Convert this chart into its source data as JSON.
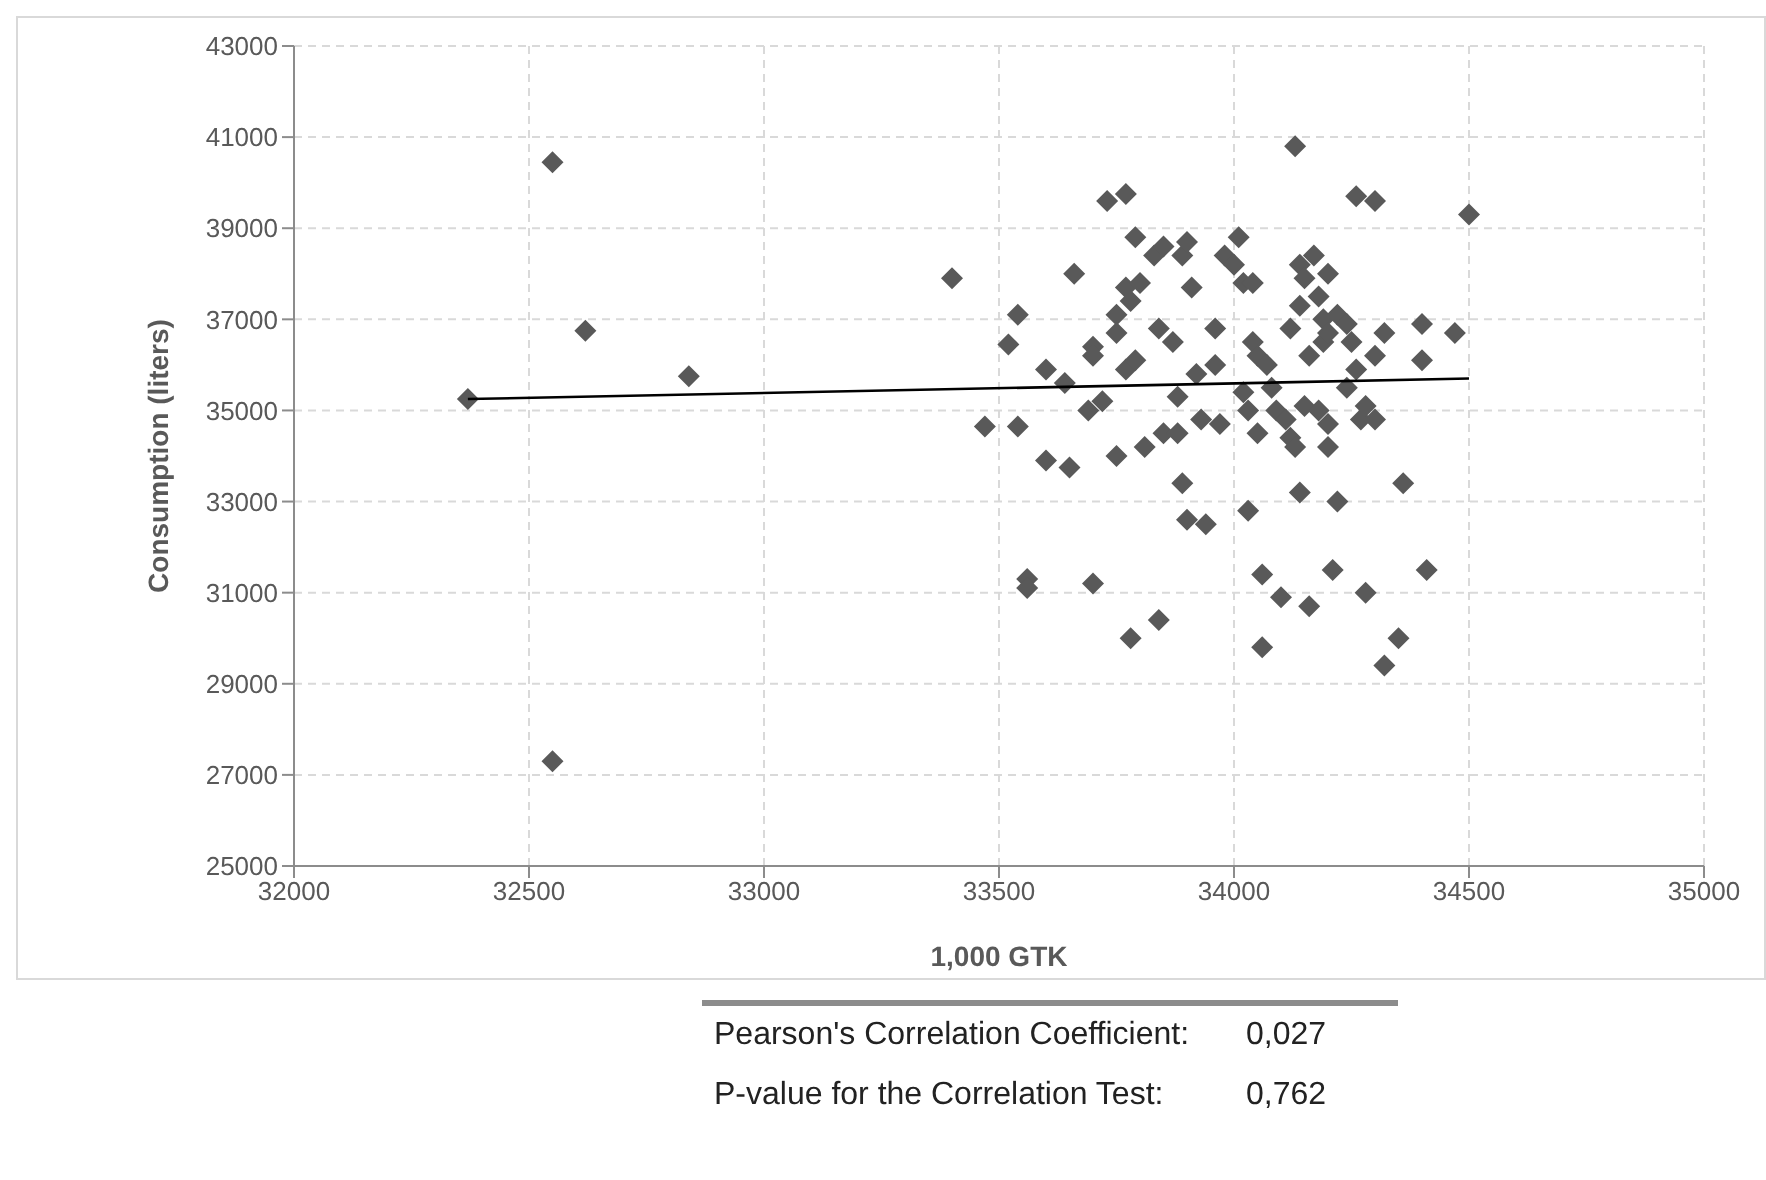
{
  "chart_data": {
    "type": "scatter",
    "xlabel": "1,000 GTK",
    "ylabel": "Consumption (liters)",
    "xlim": [
      32000,
      35000
    ],
    "xticks": [
      32000,
      32500,
      33000,
      33500,
      34000,
      34500,
      35000
    ],
    "ylim": [
      25000,
      43000
    ],
    "yticks": [
      25000,
      27000,
      29000,
      31000,
      33000,
      35000,
      37000,
      39000,
      41000,
      43000
    ],
    "grid": true,
    "legend": false,
    "marker": "diamond",
    "series": [
      {
        "type": "scatter",
        "color": "#595959",
        "x": [
          32370,
          32550,
          32620,
          32840,
          32550,
          33400,
          33470,
          33520,
          33540,
          33540,
          33560,
          33560,
          33600,
          33600,
          33640,
          33650,
          33660,
          33690,
          33700,
          33700,
          33700,
          33720,
          33730,
          33750,
          33750,
          33750,
          33770,
          33770,
          33770,
          33780,
          33790,
          33790,
          33780,
          33800,
          33810,
          33830,
          33840,
          33850,
          33850,
          33840,
          33870,
          33880,
          33880,
          33890,
          33890,
          33900,
          33900,
          33910,
          33920,
          33930,
          33940,
          33960,
          33960,
          33970,
          33980,
          34000,
          34010,
          34020,
          34020,
          34030,
          34030,
          34040,
          34040,
          34050,
          34050,
          34060,
          34060,
          34070,
          34080,
          34090,
          34100,
          34110,
          34120,
          34120,
          34130,
          34130,
          34140,
          34140,
          34140,
          34150,
          34150,
          34160,
          34160,
          34170,
          34180,
          34180,
          34190,
          34190,
          34200,
          34200,
          34200,
          34200,
          34210,
          34220,
          34220,
          34240,
          34240,
          34250,
          34260,
          34260,
          34270,
          34280,
          34280,
          34300,
          34300,
          34300,
          34320,
          34320,
          34350,
          34360,
          34400,
          34400,
          34410,
          34470,
          34500
        ],
        "values": [
          35250,
          40450,
          36750,
          35750,
          27300,
          37900,
          34650,
          36450,
          37100,
          34650,
          31300,
          31100,
          35900,
          33900,
          35600,
          33750,
          38000,
          35000,
          36400,
          36200,
          31200,
          35200,
          39600,
          37100,
          36700,
          34000,
          39750,
          37700,
          35900,
          37400,
          36100,
          38800,
          30000,
          37800,
          34200,
          38400,
          36800,
          38600,
          34500,
          30400,
          36500,
          35300,
          34500,
          38400,
          33400,
          32600,
          38700,
          37700,
          35800,
          34800,
          32500,
          36800,
          36000,
          34700,
          38400,
          38200,
          38800,
          35400,
          37800,
          35000,
          32800,
          37800,
          36500,
          36200,
          34500,
          31400,
          29800,
          36000,
          35500,
          35000,
          30900,
          34800,
          36800,
          34400,
          40800,
          34200,
          38200,
          37300,
          33200,
          37900,
          35100,
          36200,
          30700,
          38400,
          37500,
          35000,
          37000,
          36500,
          38000,
          36700,
          34700,
          34200,
          31500,
          37100,
          33000,
          36900,
          35500,
          36500,
          39700,
          35900,
          34800,
          35100,
          31000,
          39600,
          34800,
          36200,
          36700,
          29400,
          30000,
          33400,
          36900,
          36100,
          31500,
          36700,
          39300
        ]
      },
      {
        "type": "line",
        "color": "#000000",
        "marker": "none",
        "x": [
          32370,
          34500
        ],
        "values": [
          35250,
          35700
        ]
      }
    ],
    "annotations": [
      "Pearson's Correlation Coefficient:",
      "0,027",
      "P-value for the Correlation Test:",
      "0,762"
    ]
  }
}
